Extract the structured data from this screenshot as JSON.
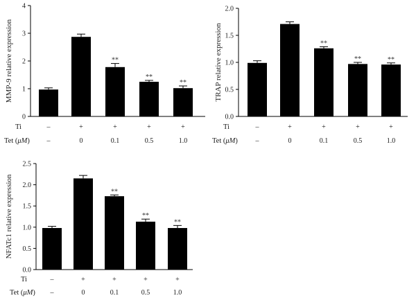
{
  "chart_data": [
    {
      "type": "bar",
      "ylabel": "MMP-9 relative expression",
      "ylim": [
        0,
        4
      ],
      "yticks": [
        "0",
        "1",
        "2",
        "3",
        "4"
      ],
      "values": [
        0.97,
        2.87,
        1.78,
        1.25,
        1.02
      ],
      "errors": [
        0.06,
        0.1,
        0.13,
        0.05,
        0.08
      ],
      "significance": [
        "",
        "",
        "**",
        "**",
        "**"
      ],
      "ti": [
        "–",
        "+",
        "+",
        "+",
        "+"
      ],
      "tet": [
        "–",
        "0",
        "0.1",
        "0.5",
        "1.0"
      ],
      "color": "#000000"
    },
    {
      "type": "bar",
      "ylabel": "TRAP relative expression",
      "ylim": [
        0,
        2
      ],
      "yticks": [
        "0.0",
        "0.5",
        "1.0",
        "1.5",
        "2.0"
      ],
      "values": [
        0.99,
        1.71,
        1.26,
        0.97,
        0.96
      ],
      "errors": [
        0.04,
        0.04,
        0.03,
        0.03,
        0.03
      ],
      "significance": [
        "",
        "",
        "**",
        "**",
        "**"
      ],
      "ti": [
        "–",
        "+",
        "+",
        "+",
        "+"
      ],
      "tet": [
        "–",
        "0",
        "0.1",
        "0.5",
        "1.0"
      ],
      "color": "#000000"
    },
    {
      "type": "bar",
      "ylabel": "NFATc1 relative expression",
      "ylim": [
        0,
        2.5
      ],
      "yticks": [
        "0.0",
        "0.5",
        "1.0",
        "1.5",
        "2.0",
        "2.5"
      ],
      "values": [
        0.98,
        2.15,
        1.73,
        1.13,
        0.98
      ],
      "errors": [
        0.04,
        0.07,
        0.03,
        0.06,
        0.06
      ],
      "significance": [
        "",
        "",
        "**",
        "**",
        "**"
      ],
      "ti": [
        "–",
        "+",
        "+",
        "+",
        "+"
      ],
      "tet": [
        "–",
        "0",
        "0.1",
        "0.5",
        "1.0"
      ],
      "color": "#000000"
    }
  ],
  "labels": {
    "ti": "Ti",
    "tet_prefix": "Tet (",
    "tet_unit": "μM",
    "tet_suffix": ")"
  }
}
